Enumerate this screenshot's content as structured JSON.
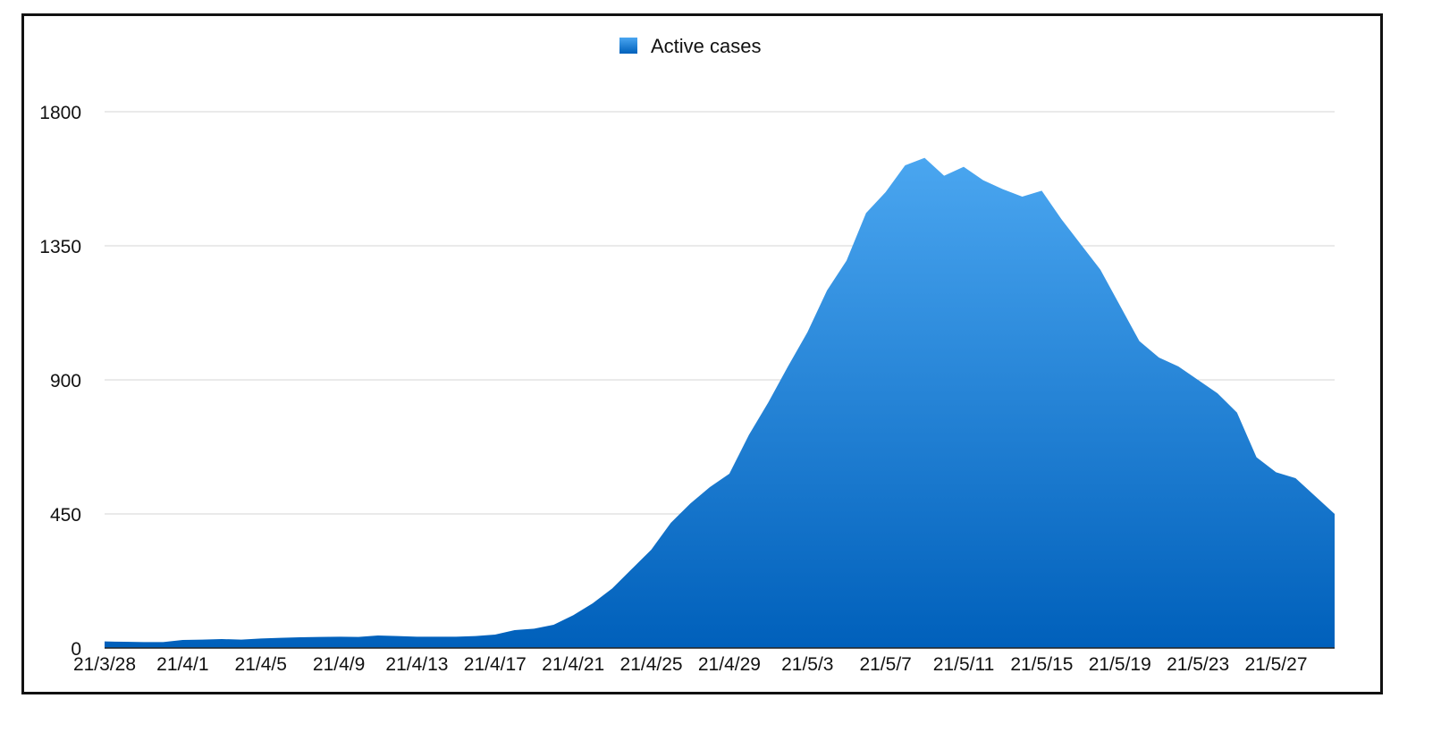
{
  "chart_data": {
    "type": "area",
    "title": "",
    "xlabel": "",
    "ylabel": "",
    "ylim": [
      0,
      1800
    ],
    "y_ticks": [
      0,
      450,
      900,
      1350,
      1800
    ],
    "grid": true,
    "legend_placement": "top-center",
    "x": [
      "21/3/28",
      "21/3/29",
      "21/3/30",
      "21/3/31",
      "21/4/1",
      "21/4/2",
      "21/4/3",
      "21/4/4",
      "21/4/5",
      "21/4/6",
      "21/4/7",
      "21/4/8",
      "21/4/9",
      "21/4/10",
      "21/4/11",
      "21/4/12",
      "21/4/13",
      "21/4/14",
      "21/4/15",
      "21/4/16",
      "21/4/17",
      "21/4/18",
      "21/4/19",
      "21/4/20",
      "21/4/21",
      "21/4/22",
      "21/4/23",
      "21/4/24",
      "21/4/25",
      "21/4/26",
      "21/4/27",
      "21/4/28",
      "21/4/29",
      "21/4/30",
      "21/5/1",
      "21/5/2",
      "21/5/3",
      "21/5/4",
      "21/5/5",
      "21/5/6",
      "21/5/7",
      "21/5/8",
      "21/5/9",
      "21/5/10",
      "21/5/11",
      "21/5/12",
      "21/5/13",
      "21/5/14",
      "21/5/15",
      "21/5/16",
      "21/5/17",
      "21/5/18",
      "21/5/19",
      "21/5/20",
      "21/5/21",
      "21/5/22",
      "21/5/23",
      "21/5/24",
      "21/5/25",
      "21/5/26",
      "21/5/27",
      "21/5/28",
      "21/5/29",
      "21/5/30"
    ],
    "x_tick_labels": [
      "21/3/28",
      "21/4/1",
      "21/4/5",
      "21/4/9",
      "21/4/13",
      "21/4/17",
      "21/4/21",
      "21/4/25",
      "21/4/29",
      "21/5/3",
      "21/5/7",
      "21/5/11",
      "21/5/15",
      "21/5/19",
      "21/5/23",
      "21/5/27"
    ],
    "series": [
      {
        "name": "Active cases",
        "color_top": "#4aa6f0",
        "color_bottom": "#0060bb",
        "values": [
          22,
          21,
          20,
          20,
          27,
          28,
          30,
          28,
          32,
          34,
          36,
          37,
          38,
          37,
          42,
          40,
          38,
          38,
          38,
          40,
          45,
          60,
          65,
          78,
          110,
          150,
          200,
          265,
          330,
          420,
          485,
          540,
          585,
          715,
          825,
          945,
          1060,
          1200,
          1300,
          1460,
          1530,
          1620,
          1645,
          1585,
          1615,
          1570,
          1540,
          1515,
          1535,
          1440,
          1355,
          1270,
          1150,
          1030,
          975,
          945,
          900,
          855,
          790,
          640,
          590,
          570,
          510,
          450
        ]
      }
    ]
  }
}
